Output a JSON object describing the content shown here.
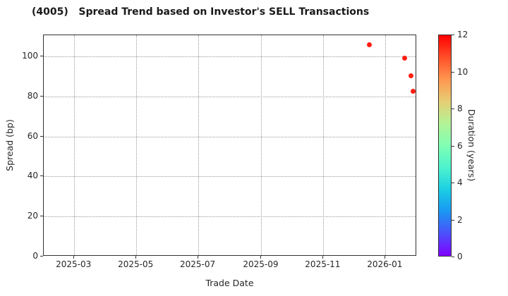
{
  "title": "(4005)   Spread Trend based on Investor's SELL Transactions",
  "chart_data": {
    "type": "scatter",
    "title": "(4005)   Spread Trend based on Investor's SELL Transactions",
    "xlabel": "Trade Date",
    "ylabel": "Spread (bp)",
    "xlim": [
      "2025-01-30",
      "2026-02-01"
    ],
    "ylim": [
      0,
      110.6
    ],
    "grid": "dotted",
    "legend": "none",
    "xticks": [
      {
        "label": "2025-03",
        "date": "2025-03-01"
      },
      {
        "label": "2025-05",
        "date": "2025-05-01"
      },
      {
        "label": "2025-07",
        "date": "2025-07-01"
      },
      {
        "label": "2025-09",
        "date": "2025-09-01"
      },
      {
        "label": "2025-11",
        "date": "2025-11-01"
      },
      {
        "label": "2026-01",
        "date": "2026-01-01"
      }
    ],
    "yticks": [
      0,
      20,
      40,
      60,
      80,
      100
    ],
    "points": [
      {
        "trade_date": "2025-12-16",
        "spread_bp": 106.0,
        "duration_years": 12
      },
      {
        "trade_date": "2026-01-20",
        "spread_bp": 99.0,
        "duration_years": 12
      },
      {
        "trade_date": "2026-01-26",
        "spread_bp": 90.5,
        "duration_years": 12
      },
      {
        "trade_date": "2026-01-28",
        "spread_bp": 82.5,
        "duration_years": 12
      }
    ],
    "marker_color": "#ff1d10",
    "colorbar": {
      "label": "Duration (years)",
      "min": 0,
      "max": 12,
      "ticks": [
        0,
        2,
        4,
        6,
        8,
        10,
        12
      ],
      "gradient_stops": [
        {
          "value": 0,
          "color": "#8000ff"
        },
        {
          "value": 1.2,
          "color": "#4d4ffc"
        },
        {
          "value": 2.4,
          "color": "#1a96f3"
        },
        {
          "value": 3.6,
          "color": "#1acee3"
        },
        {
          "value": 4.8,
          "color": "#4df3ce"
        },
        {
          "value": 6,
          "color": "#80ffb4"
        },
        {
          "value": 7.2,
          "color": "#b3f396"
        },
        {
          "value": 8.4,
          "color": "#e6ce74"
        },
        {
          "value": 9.6,
          "color": "#ff964f"
        },
        {
          "value": 10.8,
          "color": "#ff4f28"
        },
        {
          "value": 12,
          "color": "#ff0000"
        }
      ]
    },
    "colors": {
      "grid": "#999999",
      "frame": "#333333",
      "text": "#262626",
      "background": "#ffffff"
    }
  }
}
